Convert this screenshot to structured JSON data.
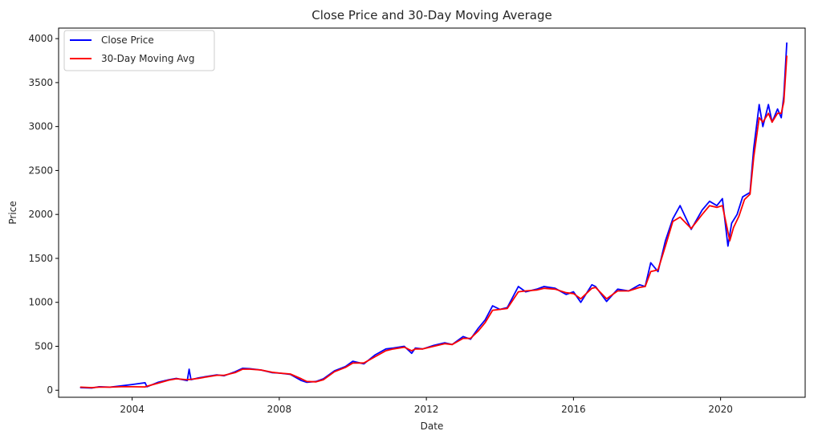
{
  "chart_data": {
    "type": "line",
    "title": "Close Price and 30-Day Moving Average",
    "xlabel": "Date",
    "ylabel": "Price",
    "x_ticks": [
      "2004",
      "2008",
      "2012",
      "2016",
      "2020"
    ],
    "y_ticks": [
      "0",
      "500",
      "1000",
      "1500",
      "2000",
      "2500",
      "3000",
      "3500",
      "4000"
    ],
    "xlim": [
      2002.0,
      2022.3
    ],
    "ylim": [
      -80,
      4120
    ],
    "grid": false,
    "legend_position": "top-left",
    "series": [
      {
        "name": "Close Price",
        "color": "#0000ff",
        "x": [
          2002.6,
          2002.9,
          2003.1,
          2003.4,
          2003.7,
          2004.0,
          2004.35,
          2004.4,
          2004.7,
          2005.0,
          2005.2,
          2005.5,
          2005.55,
          2005.6,
          2005.8,
          2006.0,
          2006.3,
          2006.5,
          2006.8,
          2007.0,
          2007.2,
          2007.5,
          2007.8,
          2008.0,
          2008.3,
          2008.6,
          2008.75,
          2009.0,
          2009.2,
          2009.5,
          2009.8,
          2010.0,
          2010.3,
          2010.6,
          2010.9,
          2011.1,
          2011.4,
          2011.6,
          2011.7,
          2011.9,
          2012.2,
          2012.5,
          2012.7,
          2013.0,
          2013.2,
          2013.4,
          2013.6,
          2013.8,
          2014.0,
          2014.2,
          2014.5,
          2014.7,
          2015.0,
          2015.2,
          2015.5,
          2015.8,
          2016.0,
          2016.2,
          2016.5,
          2016.6,
          2016.9,
          2017.2,
          2017.5,
          2017.8,
          2017.95,
          2018.1,
          2018.3,
          2018.5,
          2018.7,
          2018.9,
          2019.2,
          2019.5,
          2019.7,
          2019.9,
          2020.05,
          2020.2,
          2020.3,
          2020.45,
          2020.6,
          2020.8,
          2020.9,
          2021.05,
          2021.15,
          2021.3,
          2021.4,
          2021.55,
          2021.65,
          2021.72,
          2021.8
        ],
        "values": [
          30,
          25,
          40,
          35,
          50,
          65,
          85,
          40,
          90,
          120,
          135,
          110,
          240,
          120,
          140,
          155,
          175,
          165,
          210,
          250,
          245,
          230,
          200,
          195,
          180,
          110,
          90,
          100,
          130,
          220,
          270,
          330,
          300,
          400,
          470,
          480,
          500,
          420,
          480,
          470,
          510,
          540,
          520,
          610,
          580,
          700,
          800,
          960,
          920,
          940,
          1180,
          1120,
          1150,
          1180,
          1160,
          1090,
          1120,
          1000,
          1200,
          1180,
          1010,
          1150,
          1130,
          1200,
          1180,
          1450,
          1350,
          1700,
          1950,
          2100,
          1830,
          2050,
          2150,
          2100,
          2180,
          1640,
          1900,
          2000,
          2200,
          2250,
          2750,
          3250,
          3000,
          3250,
          3050,
          3200,
          3100,
          3350,
          3950
        ]
      },
      {
        "name": "30-Day Moving Avg",
        "color": "#ff0000",
        "x": [
          2002.6,
          2002.9,
          2003.1,
          2003.4,
          2003.7,
          2004.0,
          2004.35,
          2004.4,
          2004.7,
          2005.0,
          2005.2,
          2005.5,
          2005.8,
          2006.0,
          2006.3,
          2006.5,
          2006.8,
          2007.0,
          2007.2,
          2007.5,
          2007.8,
          2008.0,
          2008.3,
          2008.6,
          2008.75,
          2009.0,
          2009.2,
          2009.5,
          2009.8,
          2010.0,
          2010.3,
          2010.6,
          2010.9,
          2011.1,
          2011.4,
          2011.6,
          2011.7,
          2011.9,
          2012.2,
          2012.5,
          2012.7,
          2013.0,
          2013.2,
          2013.4,
          2013.6,
          2013.8,
          2014.0,
          2014.2,
          2014.5,
          2014.7,
          2015.0,
          2015.2,
          2015.5,
          2015.8,
          2016.0,
          2016.2,
          2016.5,
          2016.6,
          2016.9,
          2017.2,
          2017.5,
          2017.8,
          2017.95,
          2018.1,
          2018.3,
          2018.5,
          2018.7,
          2018.9,
          2019.2,
          2019.5,
          2019.7,
          2019.9,
          2020.05,
          2020.25,
          2020.35,
          2020.5,
          2020.65,
          2020.8,
          2020.9,
          2021.05,
          2021.15,
          2021.3,
          2021.4,
          2021.55,
          2021.65,
          2021.72,
          2021.8
        ],
        "values": [
          35,
          30,
          35,
          35,
          40,
          40,
          38,
          45,
          80,
          115,
          130,
          120,
          135,
          150,
          170,
          170,
          200,
          240,
          240,
          230,
          205,
          195,
          185,
          130,
          100,
          95,
          120,
          210,
          260,
          310,
          310,
          380,
          450,
          470,
          490,
          450,
          470,
          470,
          500,
          530,
          520,
          590,
          590,
          670,
          770,
          910,
          920,
          930,
          1120,
          1130,
          1140,
          1160,
          1150,
          1110,
          1100,
          1040,
          1160,
          1170,
          1040,
          1130,
          1130,
          1170,
          1180,
          1350,
          1370,
          1640,
          1920,
          1970,
          1840,
          2000,
          2100,
          2080,
          2100,
          1700,
          1850,
          1980,
          2170,
          2230,
          2650,
          3100,
          3050,
          3150,
          3050,
          3150,
          3150,
          3280,
          3800
        ]
      }
    ]
  }
}
